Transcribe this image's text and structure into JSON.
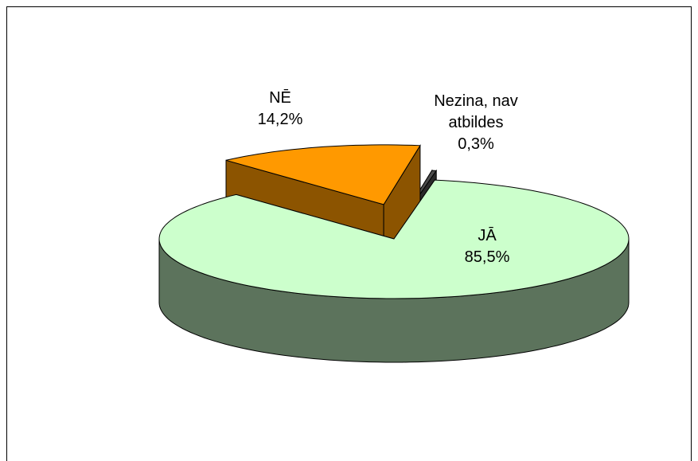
{
  "chart_data": {
    "type": "pie",
    "categories": [
      "JĀ",
      "NĒ",
      "Nezina, nav atbildes"
    ],
    "values": [
      85.5,
      14.2,
      0.3
    ],
    "value_labels": [
      "85,5%",
      "14,2%",
      "0,3%"
    ],
    "colors": [
      "#ccffcc",
      "#ff9900",
      "#4d4d4d"
    ]
  }
}
